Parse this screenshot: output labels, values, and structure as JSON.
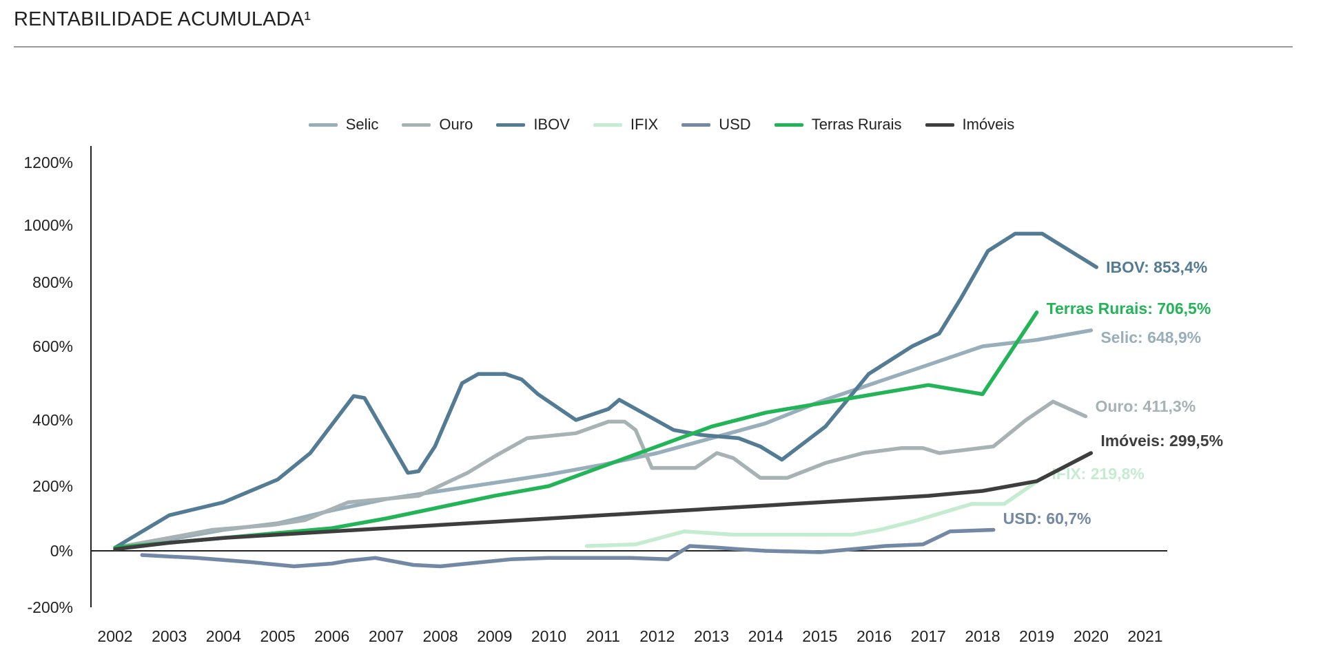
{
  "title": "RENTABILIDADE ACUMULADA¹",
  "chart_data": {
    "type": "line",
    "title": "RENTABILIDADE ACUMULADA¹",
    "xlabel": "",
    "ylabel": "",
    "x_ticks": [
      "2002",
      "2003",
      "2004",
      "2005",
      "2006",
      "2007",
      "2008",
      "2009",
      "2010",
      "2011",
      "2012",
      "2013",
      "2014",
      "2015",
      "2016",
      "2017",
      "2018",
      "2019",
      "2020",
      "2021"
    ],
    "y_ticks": [
      "1200%",
      "1000%",
      "800%",
      "600%",
      "400%",
      "200%",
      "0%",
      "-200%"
    ],
    "xlim": [
      2002,
      2021
    ],
    "legend_position": "top-center",
    "grid": false,
    "series": [
      {
        "name": "Selic",
        "color": "#98aebb",
        "end_label": "Selic: 648,9%",
        "points": [
          [
            2002,
            10
          ],
          [
            2003,
            35
          ],
          [
            2004,
            65
          ],
          [
            2005,
            85
          ],
          [
            2006,
            125
          ],
          [
            2007,
            160
          ],
          [
            2008,
            185
          ],
          [
            2009,
            210
          ],
          [
            2010,
            235
          ],
          [
            2011,
            265
          ],
          [
            2012,
            300
          ],
          [
            2013,
            345
          ],
          [
            2014,
            390
          ],
          [
            2015,
            450
          ],
          [
            2016,
            500
          ],
          [
            2017,
            550
          ],
          [
            2018,
            600
          ],
          [
            2019,
            620
          ],
          [
            2020,
            650
          ]
        ]
      },
      {
        "name": "Ouro",
        "color": "#a6b2b3",
        "end_label": "Ouro: 411,3%",
        "points": [
          [
            2002,
            10
          ],
          [
            2003,
            40
          ],
          [
            2003.8,
            65
          ],
          [
            2004.9,
            80
          ],
          [
            2005.5,
            95
          ],
          [
            2006.3,
            150
          ],
          [
            2007.6,
            170
          ],
          [
            2008.5,
            240
          ],
          [
            2009,
            290
          ],
          [
            2009.6,
            345
          ],
          [
            2010.5,
            360
          ],
          [
            2011.1,
            395
          ],
          [
            2011.4,
            395
          ],
          [
            2011.6,
            370
          ],
          [
            2011.9,
            255
          ],
          [
            2012.7,
            255
          ],
          [
            2013.1,
            300
          ],
          [
            2013.4,
            285
          ],
          [
            2013.9,
            225
          ],
          [
            2014.4,
            225
          ],
          [
            2015.1,
            270
          ],
          [
            2015.8,
            300
          ],
          [
            2016.5,
            315
          ],
          [
            2016.9,
            315
          ],
          [
            2017.2,
            300
          ],
          [
            2018.2,
            320
          ],
          [
            2018.8,
            400
          ],
          [
            2019.3,
            450
          ],
          [
            2019.9,
            410
          ]
        ]
      },
      {
        "name": "IBOV",
        "color": "#537c94",
        "end_label": "IBOV: 853,4%",
        "points": [
          [
            2002,
            10
          ],
          [
            2003,
            110
          ],
          [
            2004,
            150
          ],
          [
            2005,
            220
          ],
          [
            2005.6,
            300
          ],
          [
            2006.4,
            465
          ],
          [
            2006.6,
            460
          ],
          [
            2007.4,
            240
          ],
          [
            2007.6,
            245
          ],
          [
            2007.9,
            320
          ],
          [
            2008.4,
            500
          ],
          [
            2008.7,
            525
          ],
          [
            2009.2,
            525
          ],
          [
            2009.5,
            510
          ],
          [
            2009.8,
            470
          ],
          [
            2010.5,
            400
          ],
          [
            2011.1,
            430
          ],
          [
            2011.3,
            455
          ],
          [
            2012.3,
            370
          ],
          [
            2012.8,
            355
          ],
          [
            2013.5,
            345
          ],
          [
            2013.9,
            320
          ],
          [
            2014.3,
            280
          ],
          [
            2015.1,
            380
          ],
          [
            2015.9,
            525
          ],
          [
            2016.7,
            600
          ],
          [
            2017.2,
            640
          ],
          [
            2017.6,
            750
          ],
          [
            2018.1,
            910
          ],
          [
            2018.6,
            970
          ],
          [
            2019.1,
            970
          ],
          [
            2020.1,
            853
          ]
        ]
      },
      {
        "name": "IFIX",
        "color": "#c3ecd0",
        "end_label": "IFIX: 219,8%",
        "points": [
          [
            2010.7,
            15
          ],
          [
            2011.6,
            20
          ],
          [
            2012.5,
            60
          ],
          [
            2013.4,
            50
          ],
          [
            2015.6,
            50
          ],
          [
            2016.1,
            65
          ],
          [
            2016.7,
            90
          ],
          [
            2017.3,
            120
          ],
          [
            2017.8,
            145
          ],
          [
            2018.4,
            145
          ],
          [
            2019.1,
            225
          ]
        ]
      },
      {
        "name": "USD",
        "color": "#7388a5",
        "end_label": "USD: 60,7%",
        "points": [
          [
            2002.5,
            -15
          ],
          [
            2003.5,
            -25
          ],
          [
            2004.5,
            -40
          ],
          [
            2005.3,
            -55
          ],
          [
            2006,
            -45
          ],
          [
            2006.3,
            -35
          ],
          [
            2006.8,
            -25
          ],
          [
            2007.5,
            -50
          ],
          [
            2008,
            -55
          ],
          [
            2008.5,
            -45
          ],
          [
            2009.3,
            -30
          ],
          [
            2010,
            -25
          ],
          [
            2011.5,
            -25
          ],
          [
            2012.2,
            -30
          ],
          [
            2012.6,
            15
          ],
          [
            2013.1,
            10
          ],
          [
            2013.5,
            5
          ],
          [
            2014,
            0
          ],
          [
            2015,
            -5
          ],
          [
            2015.6,
            5
          ],
          [
            2016.2,
            15
          ],
          [
            2016.9,
            20
          ],
          [
            2017.4,
            60
          ],
          [
            2018.2,
            65
          ]
        ]
      },
      {
        "name": "Terras Rurais",
        "color": "#22b457",
        "end_label": "Terras Rurais: 706,5%",
        "points": [
          [
            2002,
            10
          ],
          [
            2003,
            25
          ],
          [
            2004,
            40
          ],
          [
            2005,
            55
          ],
          [
            2006,
            70
          ],
          [
            2007,
            100
          ],
          [
            2008,
            135
          ],
          [
            2009,
            170
          ],
          [
            2010,
            200
          ],
          [
            2011,
            260
          ],
          [
            2012,
            320
          ],
          [
            2013,
            380
          ],
          [
            2014,
            420
          ],
          [
            2015,
            445
          ],
          [
            2016,
            470
          ],
          [
            2017,
            495
          ],
          [
            2018,
            470
          ],
          [
            2019,
            706
          ]
        ]
      },
      {
        "name": "Imóveis",
        "color": "#3e3e3e",
        "end_label": "Imóveis: 299,5%",
        "points": [
          [
            2002,
            5
          ],
          [
            2003,
            25
          ],
          [
            2004,
            40
          ],
          [
            2005,
            50
          ],
          [
            2006,
            60
          ],
          [
            2007,
            70
          ],
          [
            2008,
            80
          ],
          [
            2009,
            90
          ],
          [
            2010,
            100
          ],
          [
            2011,
            110
          ],
          [
            2012,
            120
          ],
          [
            2013,
            130
          ],
          [
            2014,
            140
          ],
          [
            2015,
            150
          ],
          [
            2016,
            160
          ],
          [
            2017,
            170
          ],
          [
            2018,
            185
          ],
          [
            2019,
            215
          ],
          [
            2020,
            300
          ]
        ]
      }
    ]
  }
}
